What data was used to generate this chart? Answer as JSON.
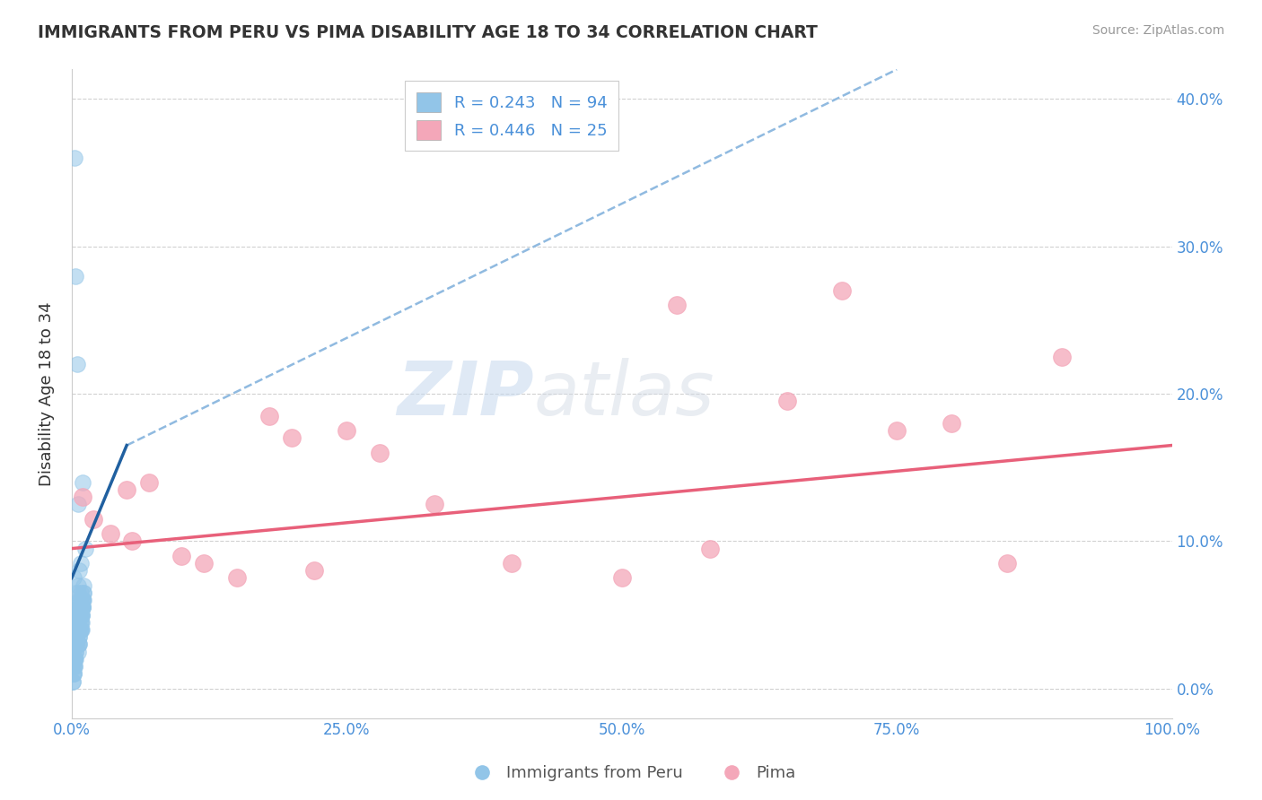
{
  "title": "IMMIGRANTS FROM PERU VS PIMA DISABILITY AGE 18 TO 34 CORRELATION CHART",
  "source_text": "Source: ZipAtlas.com",
  "ylabel": "Disability Age 18 to 34",
  "xlim": [
    0.0,
    100.0
  ],
  "ylim": [
    -2.0,
    42.0
  ],
  "xticks": [
    0.0,
    25.0,
    50.0,
    75.0,
    100.0
  ],
  "yticks": [
    0.0,
    10.0,
    20.0,
    30.0,
    40.0
  ],
  "ytick_labels_right": [
    "0.0%",
    "10.0%",
    "20.0%",
    "30.0%",
    "40.0%"
  ],
  "xtick_labels": [
    "0.0%",
    "25.0%",
    "50.0%",
    "75.0%",
    "100.0%"
  ],
  "blue_color": "#92C5E8",
  "pink_color": "#F4A7B9",
  "blue_line_solid_color": "#2060A0",
  "blue_line_dash_color": "#90BAE0",
  "pink_line_color": "#E8607A",
  "watermark_zip": "ZIP",
  "watermark_atlas": "atlas",
  "background_color": "#FFFFFF",
  "grid_color": "#CCCCCC",
  "title_color": "#333333",
  "source_color": "#999999",
  "label_color": "#4A90D9",
  "peru_x": [
    0.18,
    0.25,
    0.3,
    0.5,
    0.8,
    1.0,
    1.2,
    0.4,
    0.6,
    0.35,
    0.15,
    0.22,
    0.55,
    0.45,
    0.7,
    0.9,
    1.1,
    0.65,
    0.75,
    0.85,
    0.1,
    0.12,
    0.2,
    0.3,
    0.4,
    0.5,
    0.6,
    0.7,
    0.8,
    0.9,
    0.15,
    0.25,
    0.35,
    0.45,
    0.55,
    0.65,
    0.75,
    0.85,
    0.95,
    1.0,
    0.18,
    0.28,
    0.38,
    0.48,
    0.58,
    0.68,
    0.78,
    0.88,
    0.98,
    1.05,
    0.2,
    0.3,
    0.4,
    0.5,
    0.6,
    0.7,
    0.8,
    0.9,
    1.0,
    1.1,
    0.12,
    0.22,
    0.32,
    0.42,
    0.52,
    0.62,
    0.72,
    0.82,
    0.92,
    1.02,
    0.15,
    0.25,
    0.35,
    0.45,
    0.55,
    0.65,
    0.75,
    0.85,
    0.95,
    1.05,
    0.1,
    0.2,
    0.3,
    0.4,
    0.5,
    0.6,
    0.7,
    0.8,
    0.9,
    1.0,
    0.22,
    0.42,
    0.62,
    0.82
  ],
  "peru_y": [
    7.5,
    36.0,
    28.0,
    22.0,
    8.5,
    14.0,
    9.5,
    6.5,
    12.5,
    5.5,
    3.0,
    2.0,
    7.0,
    5.0,
    8.0,
    4.5,
    6.0,
    3.5,
    5.5,
    4.0,
    1.5,
    2.5,
    3.0,
    4.0,
    3.5,
    5.0,
    4.5,
    6.0,
    5.5,
    4.0,
    2.0,
    3.5,
    4.5,
    5.0,
    6.5,
    3.0,
    5.5,
    4.5,
    5.5,
    6.0,
    1.0,
    2.0,
    3.0,
    4.0,
    5.0,
    3.5,
    6.0,
    5.0,
    5.5,
    6.5,
    1.5,
    2.5,
    3.5,
    4.5,
    5.5,
    4.0,
    6.5,
    5.5,
    6.0,
    7.0,
    0.5,
    1.5,
    2.5,
    3.5,
    4.5,
    2.5,
    5.5,
    4.0,
    5.0,
    6.0,
    1.0,
    2.0,
    3.0,
    4.0,
    5.0,
    3.0,
    5.0,
    4.5,
    5.5,
    6.5,
    0.5,
    1.0,
    2.0,
    3.0,
    4.0,
    3.0,
    5.0,
    4.0,
    5.0,
    5.5,
    1.5,
    3.5,
    4.0,
    5.0
  ],
  "pima_x": [
    1.0,
    2.0,
    3.5,
    5.0,
    5.5,
    7.0,
    10.0,
    12.0,
    15.0,
    18.0,
    20.0,
    22.0,
    25.0,
    28.0,
    33.0,
    40.0,
    50.0,
    55.0,
    58.0,
    65.0,
    70.0,
    75.0,
    80.0,
    85.0,
    90.0
  ],
  "pima_y": [
    13.0,
    11.5,
    10.5,
    13.5,
    10.0,
    14.0,
    9.0,
    8.5,
    7.5,
    18.5,
    17.0,
    8.0,
    17.5,
    16.0,
    12.5,
    8.5,
    7.5,
    26.0,
    9.5,
    19.5,
    27.0,
    17.5,
    18.0,
    8.5,
    22.5
  ],
  "blue_reg_x0": 0.0,
  "blue_reg_y0": 7.5,
  "blue_reg_x1": 5.0,
  "blue_reg_y1": 16.5,
  "blue_dash_x0": 5.0,
  "blue_dash_y0": 16.5,
  "blue_dash_x1": 75.0,
  "blue_dash_y1": 42.0,
  "pink_reg_x0": 0.0,
  "pink_reg_y0": 9.5,
  "pink_reg_x1": 100.0,
  "pink_reg_y1": 16.5
}
